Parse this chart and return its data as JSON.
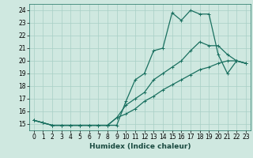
{
  "title": "",
  "xlabel": "Humidex (Indice chaleur)",
  "background_color": "#cfe8e0",
  "line_color": "#1a7060",
  "grid_color": "#a8cfc5",
  "xlim": [
    -0.5,
    23.5
  ],
  "ylim": [
    14.5,
    24.5
  ],
  "xticks": [
    0,
    1,
    2,
    3,
    4,
    5,
    6,
    7,
    8,
    9,
    10,
    11,
    12,
    13,
    14,
    15,
    16,
    17,
    18,
    19,
    20,
    21,
    22,
    23
  ],
  "yticks": [
    15,
    16,
    17,
    18,
    19,
    20,
    21,
    22,
    23,
    24
  ],
  "line1_x": [
    0,
    1,
    2,
    3,
    4,
    5,
    6,
    7,
    8,
    9,
    10,
    11,
    12,
    13,
    14,
    15,
    16,
    17,
    18,
    19,
    20,
    21,
    22,
    23
  ],
  "line1_y": [
    15.3,
    15.1,
    14.9,
    14.9,
    14.9,
    14.9,
    14.9,
    14.9,
    14.9,
    14.9,
    16.8,
    18.5,
    19.0,
    20.8,
    21.0,
    23.8,
    23.2,
    24.0,
    23.7,
    23.7,
    20.5,
    19.0,
    20.0,
    19.8
  ],
  "line2_x": [
    0,
    1,
    2,
    3,
    4,
    5,
    6,
    7,
    8,
    9,
    10,
    11,
    12,
    13,
    14,
    15,
    16,
    17,
    18,
    19,
    20,
    21,
    22,
    23
  ],
  "line2_y": [
    15.3,
    15.1,
    14.9,
    14.9,
    14.9,
    14.9,
    14.9,
    14.9,
    14.9,
    15.5,
    16.5,
    17.0,
    17.5,
    18.5,
    19.0,
    19.5,
    20.0,
    20.8,
    21.5,
    21.2,
    21.2,
    20.5,
    20.0,
    19.8
  ],
  "line3_x": [
    0,
    1,
    2,
    3,
    4,
    5,
    6,
    7,
    8,
    9,
    10,
    11,
    12,
    13,
    14,
    15,
    16,
    17,
    18,
    19,
    20,
    21,
    22,
    23
  ],
  "line3_y": [
    15.3,
    15.1,
    14.9,
    14.9,
    14.9,
    14.9,
    14.9,
    14.9,
    14.9,
    15.5,
    15.8,
    16.2,
    16.8,
    17.2,
    17.7,
    18.1,
    18.5,
    18.9,
    19.3,
    19.5,
    19.8,
    20.0,
    20.0,
    19.8
  ],
  "marker_size": 2.5,
  "line_width": 0.9,
  "tick_fontsize": 5.5,
  "xlabel_fontsize": 6.5
}
